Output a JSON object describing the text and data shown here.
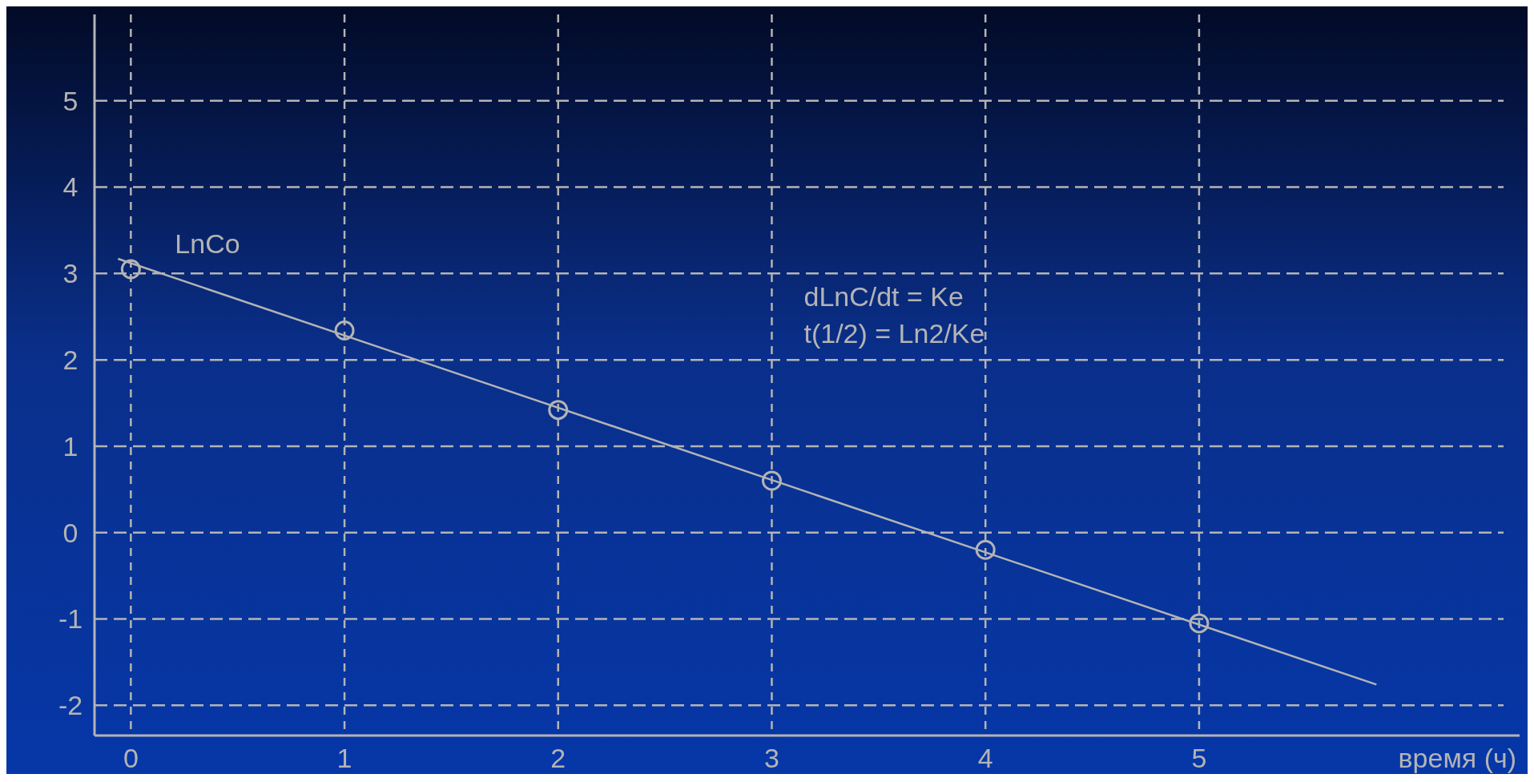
{
  "chart_data": {
    "type": "scatter",
    "xlabel": "время (ч)",
    "xlim": [
      -0.17,
      6.5
    ],
    "ylim": [
      -2.35,
      6
    ],
    "xticks": [
      0,
      1,
      2,
      3,
      4,
      5
    ],
    "yticks": [
      -2,
      -1,
      0,
      1,
      2,
      3,
      4,
      5
    ],
    "grid": true,
    "marker": "circle",
    "series": [
      {
        "color": "#b4b4b4",
        "x": [
          0,
          1,
          2,
          3,
          4,
          5
        ],
        "values": [
          3.05,
          2.34,
          1.42,
          0.6,
          -0.2,
          -1.05
        ]
      },
      {
        "type": "line",
        "color": "#b4b4b4",
        "line_style": "solid",
        "marker": "none",
        "x": [
          -0.06,
          5.83
        ],
        "values": [
          3.17,
          -1.76
        ]
      }
    ],
    "annotations": [
      {
        "text": "LnCo",
        "x": 0,
        "y": 3.05
      },
      "dLnC/dt = Ke",
      "t(1/2) = Ln2/Ke"
    ]
  }
}
